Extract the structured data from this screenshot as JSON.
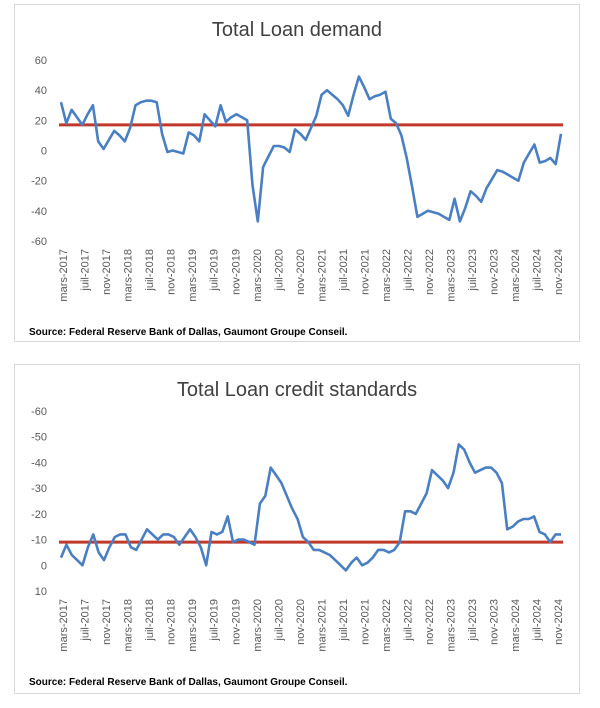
{
  "chart_data": [
    {
      "type": "line",
      "title": "Total Loan demand",
      "source": "Source: Federal Reserve Bank of Dallas, Gaumont Groupe Conseil.",
      "y_ticks": [
        "60",
        "40",
        "20",
        "0",
        "-20",
        "-40",
        "-60"
      ],
      "ylim": [
        -60,
        60
      ],
      "y_reversed": false,
      "x_labels": [
        "mars-2017",
        "juil-2017",
        "nov-2017",
        "mars-2018",
        "juil-2018",
        "nov-2018",
        "mars-2019",
        "juil-2019",
        "nov-2019",
        "mars-2020",
        "juil-2020",
        "nov-2020",
        "mars-2021",
        "juil-2021",
        "nov-2021",
        "mars-2022",
        "juil-2022",
        "nov-2022",
        "mars-2023",
        "juil-2023",
        "nov-2023",
        "mars-2024",
        "juil-2024",
        "nov-2024"
      ],
      "reference_line": {
        "value": 17,
        "color": "#c0392b"
      },
      "series": [
        {
          "color": "#4a7fc1",
          "values": [
            32,
            18,
            27,
            22,
            17,
            24,
            30,
            6,
            1,
            7,
            13,
            10,
            6,
            15,
            30,
            32,
            33,
            33,
            32,
            11,
            -1,
            0,
            -1,
            -2,
            12,
            10,
            6,
            24,
            20,
            16,
            30,
            19,
            22,
            24,
            22,
            20,
            -23,
            -47,
            -11,
            -4,
            3,
            3,
            2,
            -1,
            14,
            11,
            7,
            15,
            23,
            37,
            40,
            37,
            34,
            30,
            23,
            37,
            49,
            42,
            34,
            36,
            37,
            39,
            21,
            18,
            10,
            -5,
            -24,
            -44,
            -42,
            -40,
            -41,
            -42,
            -44,
            -46,
            -32,
            -47,
            -38,
            -27,
            -30,
            -34,
            -25,
            -19,
            -13,
            -14,
            -16,
            -18,
            -20,
            -8,
            -2,
            4,
            -8,
            -7,
            -5,
            -9,
            11
          ]
        }
      ]
    },
    {
      "type": "line",
      "title": "Total Loan credit standards",
      "source": "Source: Federal Reserve Bank of Dallas, Gaumont Groupe Conseil.",
      "y_ticks": [
        "-60",
        "-50",
        "-40",
        "-30",
        "-20",
        "-10",
        "0",
        "10"
      ],
      "ylim": [
        -60,
        10
      ],
      "y_reversed": true,
      "x_labels": [
        "mars-2017",
        "juil-2017",
        "nov-2017",
        "mars-2018",
        "juil-2018",
        "nov-2018",
        "mars-2019",
        "juil-2019",
        "nov-2019",
        "mars-2020",
        "juil-2020",
        "nov-2020",
        "mars-2021",
        "juil-2021",
        "nov-2021",
        "mars-2022",
        "juil-2022",
        "nov-2022",
        "mars-2023",
        "juil-2023",
        "nov-2023",
        "mars-2024",
        "juil-2024",
        "nov-2024"
      ],
      "reference_line": {
        "value": -9,
        "color": "#c0392b"
      },
      "series": [
        {
          "color": "#4a7fc1",
          "values": [
            -3,
            -8,
            -4,
            -2,
            0,
            -7,
            -12,
            -5,
            -2,
            -7,
            -11,
            -12,
            -12,
            -7,
            -6,
            -10,
            -14,
            -12,
            -10,
            -12,
            -12,
            -11,
            -8,
            -11,
            -14,
            -11,
            -7,
            0,
            -13,
            -12,
            -13,
            -19,
            -9,
            -10,
            -10,
            -9,
            -8,
            -24,
            -27,
            -38,
            -35,
            -32,
            -27,
            -22,
            -18,
            -11,
            -9,
            -6,
            -6,
            -5,
            -4,
            -2,
            0,
            2,
            -1,
            -3,
            0,
            -1,
            -3,
            -6,
            -6,
            -5,
            -6,
            -9,
            -21,
            -21,
            -20,
            -24,
            -28,
            -37,
            -35,
            -33,
            -30,
            -36,
            -47,
            -45,
            -40,
            -36,
            -37,
            -38,
            -38,
            -36,
            -32,
            -14,
            -15,
            -17,
            -18,
            -18,
            -19,
            -13,
            -12,
            -9,
            -12,
            -12
          ]
        }
      ]
    }
  ]
}
